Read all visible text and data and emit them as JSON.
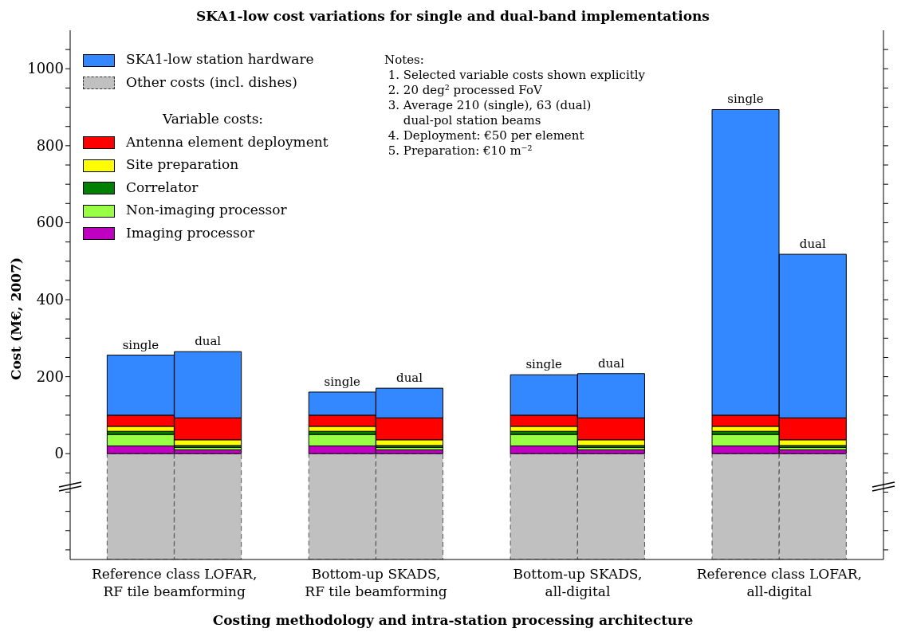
{
  "chart_data": {
    "type": "bar",
    "stacked": true,
    "title": "SKA1-low cost variations for single and dual-band implementations",
    "xlabel": "Costing methodology and intra-station processing architecture",
    "ylabel": "Cost (M€, 2007)",
    "legend_title": "Variable costs:",
    "categories": [
      null,
      null,
      null,
      null,
      null,
      null,
      null,
      null,
      null,
      null,
      null
    ],
    "series": [
      {
        "name": "Other costs (incl. dishes)",
        "color": "#c0c0c0",
        "line_style": "dashed",
        "values": [
          -275,
          -275,
          null,
          -275,
          -275,
          null,
          -275,
          -275,
          null,
          -275,
          -275
        ]
      },
      {
        "name": "Imaging processor",
        "color": "#c000c0",
        "values": [
          20,
          10,
          null,
          20,
          10,
          null,
          20,
          10,
          null,
          20,
          10
        ]
      },
      {
        "name": "Non-imaging processor",
        "color": "#99ff44",
        "values": [
          30,
          6,
          null,
          30,
          6,
          null,
          30,
          6,
          null,
          30,
          6
        ]
      },
      {
        "name": "Correlator",
        "color": "#008000",
        "values": [
          8,
          5,
          null,
          8,
          5,
          null,
          8,
          5,
          null,
          8,
          5
        ]
      },
      {
        "name": "Site preparation",
        "color": "#ffff00",
        "values": [
          13,
          15,
          null,
          13,
          15,
          null,
          13,
          15,
          null,
          13,
          15
        ]
      },
      {
        "name": "Antenna element deployment",
        "color": "#ff0000",
        "values": [
          29,
          57,
          null,
          29,
          57,
          null,
          29,
          57,
          null,
          29,
          57
        ]
      },
      {
        "name": "SKA1-low station hardware",
        "color": "#3388ff",
        "values": [
          156,
          172,
          null,
          60,
          77,
          null,
          105,
          115,
          null,
          794,
          425
        ],
        "value_labels": [
          "single",
          "dual",
          null,
          "single",
          "dual",
          null,
          "single",
          "dual",
          null,
          "single",
          "dual"
        ]
      }
    ],
    "ylim": [
      -275,
      1100
    ],
    "yticks": [
      {
        "value": -250,
        "label": null
      },
      {
        "value": -200,
        "label": null
      },
      {
        "value": -150,
        "label": null
      },
      {
        "value": -100,
        "label": null
      },
      {
        "value": -50,
        "label": null
      },
      0,
      {
        "value": 50,
        "label": null
      },
      {
        "value": 100,
        "label": null
      },
      {
        "value": 150,
        "label": null
      },
      200,
      {
        "value": 250,
        "label": null
      },
      {
        "value": 300,
        "label": null
      },
      {
        "value": 350,
        "label": null
      },
      400,
      {
        "value": 450,
        "label": null
      },
      {
        "value": 500,
        "label": null
      },
      {
        "value": 550,
        "label": null
      },
      600,
      {
        "value": 650,
        "label": null
      },
      {
        "value": 700,
        "label": null
      },
      {
        "value": 750,
        "label": null
      },
      800,
      {
        "value": 850,
        "label": null
      },
      {
        "value": 900,
        "label": null
      },
      {
        "value": 950,
        "label": null
      },
      1000,
      {
        "value": 1050,
        "label": null
      }
    ],
    "grid": false,
    "legend": "top left",
    "annotations": [
      "Reference class LOFAR,\nRF tile beamforming",
      "Bottom-up SKADS,\nRF tile beamforming",
      "Bottom-up SKADS,\nall-digital",
      "Reference class LOFAR,\nall-digital",
      "Notes:\n 1. Selected variable costs shown explicitly\n 2. 20 deg² processed FoV\n 3. Average 210 (single), 63 (dual)\n     dual-pol station beams\n 4. Deployment: €50 per element\n 5. Preparation: €10 m⁻²"
    ]
  }
}
